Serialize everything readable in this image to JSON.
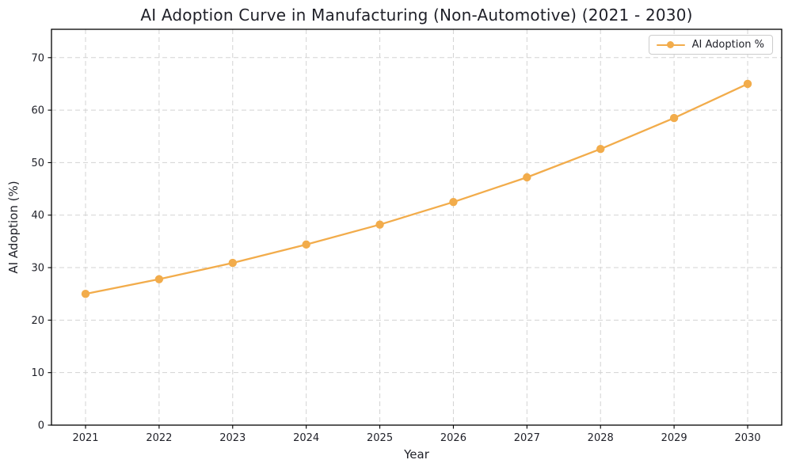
{
  "figure": {
    "title": "AI Adoption Curve in Manufacturing (Non-Automotive) (2021 - 2030)",
    "xlabel": "Year",
    "ylabel": "AI Adoption (%)"
  },
  "legend": {
    "position": "upper right",
    "items": [
      {
        "label": "AI Adoption %",
        "color": "#f2ac4b",
        "marker": "circle"
      }
    ]
  },
  "chart_data": {
    "type": "line",
    "title": "AI Adoption Curve in Manufacturing (Non-Automotive) (2021 - 2030)",
    "xlabel": "Year",
    "ylabel": "AI Adoption (%)",
    "categories": [
      "2021",
      "2022",
      "2023",
      "2024",
      "2025",
      "2026",
      "2027",
      "2028",
      "2029",
      "2030"
    ],
    "series": [
      {
        "name": "AI Adoption %",
        "values": [
          25.0,
          27.8,
          30.9,
          34.4,
          38.2,
          42.5,
          47.2,
          52.6,
          58.5,
          65.0
        ]
      }
    ],
    "ylim": [
      0,
      75.4
    ],
    "yticks": [
      0,
      10,
      20,
      30,
      40,
      50,
      60,
      70
    ],
    "grid": true,
    "grid_style": "dashed",
    "legend_position": "upper right",
    "line_color": "#f2ac4b",
    "grid_color": "#d3d3d3",
    "spine_color": "#000000",
    "tick_label_color": "#1f2028",
    "marker": "o"
  }
}
